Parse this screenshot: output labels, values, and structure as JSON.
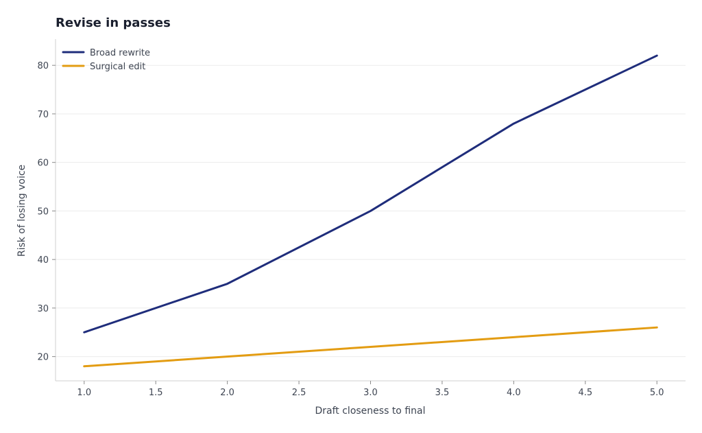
{
  "chart_data": {
    "type": "line",
    "title": "Revise in passes",
    "xlabel": "Draft closeness to final",
    "ylabel": "Risk of losing voice",
    "x": [
      1.0,
      2.0,
      3.0,
      4.0,
      5.0
    ],
    "xlim": [
      0.8,
      5.2
    ],
    "ylim": [
      15,
      85.4
    ],
    "x_ticks": [
      "1.0",
      "1.5",
      "2.0",
      "2.5",
      "3.0",
      "3.5",
      "4.0",
      "4.5",
      "5.0"
    ],
    "y_ticks": [
      "20",
      "30",
      "40",
      "50",
      "60",
      "70",
      "80"
    ],
    "grid": "horizontal",
    "legend_position": "top-left",
    "series": [
      {
        "name": "Broad rewrite",
        "color": "#1f2d7b",
        "values": [
          25,
          35,
          50,
          68,
          82
        ]
      },
      {
        "name": "Surgical edit",
        "color": "#e39c12",
        "values": [
          18,
          20,
          22,
          24,
          26
        ]
      }
    ]
  }
}
